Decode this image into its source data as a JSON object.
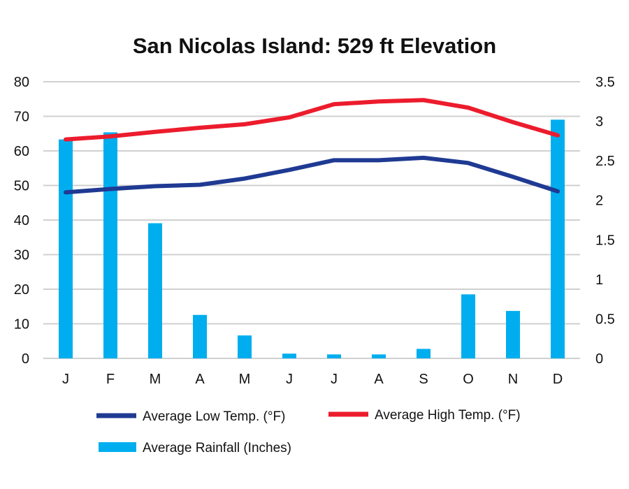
{
  "chart_data": {
    "type": "bar",
    "title": "San Nicolas Island: 529 ft Elevation",
    "categories": [
      "J",
      "F",
      "M",
      "A",
      "M",
      "J",
      "J",
      "A",
      "S",
      "O",
      "N",
      "D"
    ],
    "y_left": {
      "ylim": [
        0,
        80
      ],
      "ticks": [
        "0",
        "10",
        "20",
        "30",
        "40",
        "50",
        "60",
        "70",
        "80"
      ]
    },
    "y_right": {
      "ylim": [
        0,
        3.5
      ],
      "ticks": [
        "0",
        "0.5",
        "1",
        "1.5",
        "2",
        "2.5",
        "3",
        "3.5"
      ]
    },
    "grid": true,
    "series": [
      {
        "name": "Average Rainfall (Inches)",
        "type": "bar",
        "axis": "right",
        "color": "#00AEEF",
        "values": [
          2.77,
          2.86,
          1.71,
          0.55,
          0.29,
          0.06,
          0.05,
          0.05,
          0.12,
          0.81,
          0.6,
          3.02
        ]
      },
      {
        "name": "Average Low Temp. (°F)",
        "type": "line",
        "axis": "left",
        "color": "#1F3A93",
        "values": [
          48.0,
          49.0,
          49.8,
          50.2,
          52.0,
          54.5,
          57.3,
          57.3,
          58.0,
          56.5,
          52.5,
          48.3
        ]
      },
      {
        "name": "Average High Temp. (°F)",
        "type": "line",
        "axis": "left",
        "color": "#EC1C2D",
        "values": [
          63.3,
          64.2,
          65.5,
          66.7,
          67.7,
          69.7,
          73.5,
          74.3,
          74.7,
          72.5,
          68.3,
          64.5
        ]
      }
    ],
    "legend": {
      "placement": "bottom",
      "items": [
        "Average Low Temp. (°F)",
        "Average High Temp. (°F)",
        "Average Rainfall (Inches)"
      ]
    }
  }
}
